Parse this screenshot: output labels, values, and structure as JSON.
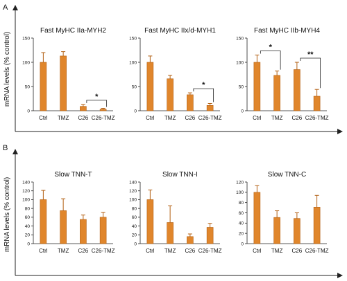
{
  "figure": {
    "panels": [
      {
        "label": "A",
        "ylabel": "mRNA levels (% control)"
      },
      {
        "label": "B",
        "ylabel": "mRNA levels (% control)"
      }
    ],
    "colors": {
      "bar_fill": "#E0862C",
      "bar_stroke": "#B25F12",
      "axis": "#222222"
    }
  },
  "chart_data": [
    {
      "type": "bar",
      "panel": "A",
      "title": "Fast MyHC IIa-MYH2",
      "categories": [
        "Ctrl",
        "TMZ",
        "C26",
        "C26-TMZ"
      ],
      "values": [
        100,
        113,
        9,
        3
      ],
      "error": [
        20,
        9,
        4,
        2
      ],
      "ylim": [
        0,
        150
      ],
      "yticks": [
        0,
        50,
        100,
        150
      ],
      "significance": [
        {
          "from": 2,
          "to": 3,
          "label": "*"
        }
      ]
    },
    {
      "type": "bar",
      "panel": "A",
      "title": "Fast MyHC IIx/d-MYH1",
      "categories": [
        "Ctrl",
        "TMZ",
        "C26",
        "C26-TMZ"
      ],
      "values": [
        100,
        66,
        33,
        11
      ],
      "error": [
        13,
        7,
        4,
        4
      ],
      "ylim": [
        0,
        150
      ],
      "yticks": [
        0,
        50,
        100,
        150
      ],
      "significance": [
        {
          "from": 2,
          "to": 3,
          "label": "*"
        }
      ]
    },
    {
      "type": "bar",
      "panel": "A",
      "title": "Fast MyHC IIb-MYH4",
      "categories": [
        "Ctrl",
        "TMZ",
        "C26",
        "C26-TMZ"
      ],
      "values": [
        100,
        73,
        85,
        30
      ],
      "error": [
        15,
        9,
        15,
        14
      ],
      "ylim": [
        0,
        150
      ],
      "yticks": [
        0,
        50,
        100,
        150
      ],
      "significance": [
        {
          "from": 0,
          "to": 1,
          "label": "*"
        },
        {
          "from": 2,
          "to": 3,
          "label": "**"
        }
      ]
    },
    {
      "type": "bar",
      "panel": "B",
      "title": "Slow TNN-T",
      "categories": [
        "Ctrl",
        "TMZ",
        "C26",
        "C26-TMZ"
      ],
      "values": [
        100,
        75,
        55,
        60
      ],
      "error": [
        21,
        27,
        10,
        11
      ],
      "ylim": [
        0,
        140
      ],
      "yticks": [
        0,
        20,
        40,
        60,
        80,
        100,
        120,
        140
      ],
      "significance": []
    },
    {
      "type": "bar",
      "panel": "B",
      "title": "Slow TNN-I",
      "categories": [
        "Ctrl",
        "TMZ",
        "C26",
        "C26-TMZ"
      ],
      "values": [
        100,
        48,
        16,
        37
      ],
      "error": [
        22,
        38,
        6,
        9
      ],
      "ylim": [
        0,
        140
      ],
      "yticks": [
        0,
        20,
        40,
        60,
        80,
        100,
        120,
        140
      ],
      "significance": []
    },
    {
      "type": "bar",
      "panel": "B",
      "title": "Slow TNN-C",
      "categories": [
        "Ctrl",
        "TMZ",
        "C26",
        "C26-TMZ"
      ],
      "values": [
        100,
        51,
        49,
        71
      ],
      "error": [
        13,
        13,
        11,
        23
      ],
      "ylim": [
        0,
        120
      ],
      "yticks": [
        0,
        20,
        40,
        60,
        80,
        100,
        120
      ],
      "significance": []
    }
  ]
}
